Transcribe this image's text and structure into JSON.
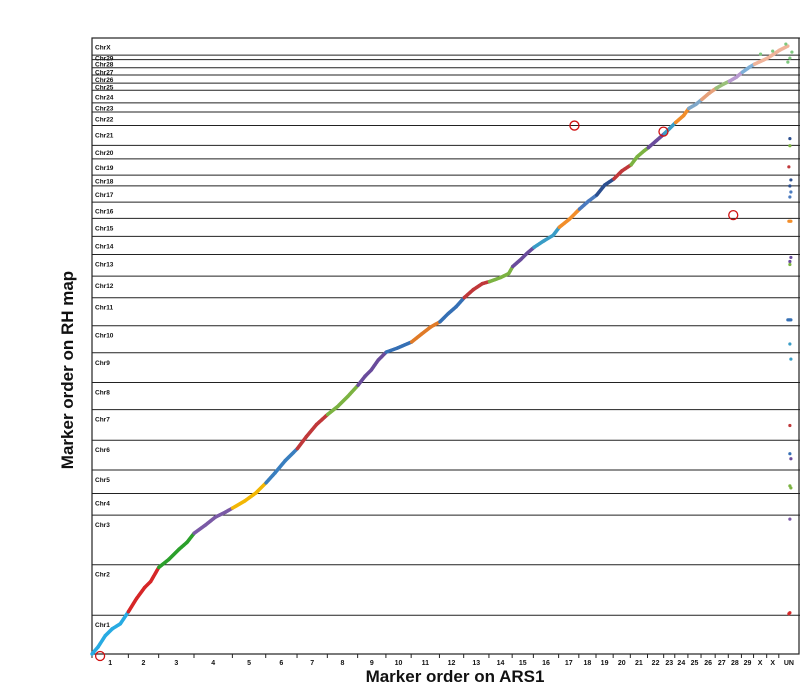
{
  "chart_data": {
    "type": "scatter",
    "xlabel": "Marker order on ARS1",
    "ylabel": "Marker order on RH map",
    "x_tick_labels": [
      "1",
      "2",
      "3",
      "4",
      "5",
      "6",
      "7",
      "8",
      "9",
      "10",
      "11",
      "12",
      "13",
      "14",
      "15",
      "16",
      "17",
      "18",
      "19",
      "20",
      "21",
      "22",
      "23",
      "24",
      "25",
      "26",
      "27",
      "28",
      "29",
      "X",
      "X",
      "UN"
    ],
    "y_bands": [
      "Chr1",
      "Chr2",
      "Chr3",
      "Chr4",
      "Chr5",
      "Chr6",
      "Chr7",
      "Chr8",
      "Chr9",
      "Chr10",
      "Chr11",
      "Chr12",
      "Chr13",
      "Chr14",
      "Chr15",
      "Chr16",
      "Chr17",
      "Chr18",
      "Chr19",
      "Chr20",
      "Chr21",
      "Chr22",
      "Chr23",
      "Chr24",
      "Chr25",
      "Chr26",
      "Chr27",
      "Chr28",
      "Chr29",
      "ChrX"
    ],
    "x_band_widths": [
      36,
      30,
      35,
      38,
      33,
      31,
      30,
      30,
      28,
      25,
      28,
      24,
      25,
      23,
      21,
      25,
      20,
      17,
      17,
      17,
      17,
      16,
      11,
      13,
      13,
      14,
      13,
      13,
      12,
      13,
      12,
      20
    ],
    "y_band_heights": [
      43,
      56,
      55,
      24,
      26,
      33,
      34,
      30,
      33,
      30,
      31,
      24,
      24,
      20,
      20,
      18,
      18,
      12,
      18,
      15,
      22,
      15,
      10,
      14,
      8,
      9,
      8,
      9,
      5,
      19
    ],
    "series_colors": [
      "#29abe2",
      "#d62728",
      "#2ca02c",
      "#7b5aa6",
      "#f2b705",
      "#3a7fbf",
      "#c0393b",
      "#7cb342",
      "#6a4c9c",
      "#3670b5",
      "#e07b28",
      "#3670b5",
      "#c0393b",
      "#7cb342",
      "#6a4c9c",
      "#3a9dc6",
      "#f28e2b",
      "#4b7bbf",
      "#2c4f8f",
      "#c0393b",
      "#7cb342",
      "#6a4c9c",
      "#3a9dc6",
      "#f28e2b",
      "#7fa7c9",
      "#e6a07a",
      "#9ac07a",
      "#b89ad0",
      "#7fb0d8",
      "#f0b49a"
    ],
    "series": [
      {
        "chr": "Chr1",
        "x": [
          0,
          6,
          13,
          20,
          28,
          36
        ],
        "y": [
          0,
          7,
          18,
          25,
          30,
          42
        ]
      },
      {
        "chr": "Chr2",
        "x": [
          36,
          44,
          52,
          58,
          66
        ],
        "y": [
          42,
          55,
          66,
          72,
          86
        ]
      },
      {
        "chr": "Chr3",
        "x": [
          66,
          76,
          86,
          94,
          101
        ],
        "y": [
          86,
          94,
          104,
          111,
          120
        ]
      },
      {
        "chr": "Chr4",
        "x": [
          101,
          112,
          122,
          132,
          139
        ],
        "y": [
          120,
          128,
          136,
          141,
          145
        ]
      },
      {
        "chr": "Chr5",
        "x": [
          139,
          151,
          162,
          172
        ],
        "y": [
          145,
          152,
          160,
          170
        ]
      },
      {
        "chr": "Chr6",
        "x": [
          172,
          181,
          191,
          203
        ],
        "y": [
          170,
          180,
          192,
          204
        ]
      },
      {
        "chr": "Chr7",
        "x": [
          203,
          212,
          222,
          233
        ],
        "y": [
          204,
          216,
          228,
          238
        ]
      },
      {
        "chr": "Chr8",
        "x": [
          233,
          243,
          253,
          263
        ],
        "y": [
          238,
          246,
          256,
          267
        ]
      },
      {
        "chr": "Chr9",
        "x": [
          263,
          270,
          276,
          283,
          291
        ],
        "y": [
          267,
          276,
          282,
          292,
          300
        ]
      },
      {
        "chr": "Chr10",
        "x": [
          291,
          302,
          316
        ],
        "y": [
          300,
          304,
          310
        ]
      },
      {
        "chr": "Chr11",
        "x": [
          316,
          326,
          335,
          344
        ],
        "y": [
          310,
          318,
          325,
          330
        ]
      },
      {
        "chr": "Chr12",
        "x": [
          344,
          352,
          360,
          368
        ],
        "y": [
          330,
          338,
          345,
          354
        ]
      },
      {
        "chr": "Chr13",
        "x": [
          368,
          377,
          386,
          393
        ],
        "y": [
          354,
          362,
          368,
          370
        ]
      },
      {
        "chr": "Chr14",
        "x": [
          393,
          404,
          412,
          416
        ],
        "y": [
          370,
          374,
          378,
          385
        ]
      },
      {
        "chr": "Chr15",
        "x": [
          416,
          424,
          430,
          437
        ],
        "y": [
          385,
          392,
          398,
          404
        ]
      },
      {
        "chr": "Chr16",
        "x": [
          437,
          446,
          456,
          462
        ],
        "y": [
          404,
          410,
          416,
          424
        ]
      },
      {
        "chr": "Chr17",
        "x": [
          462,
          472,
          480,
          482
        ],
        "y": [
          424,
          432,
          440,
          442
        ]
      },
      {
        "chr": "Chr18",
        "x": [
          482,
          491,
          499
        ],
        "y": [
          442,
          450,
          456
        ]
      },
      {
        "chr": "Chr19",
        "x": [
          499,
          507,
          516
        ],
        "y": [
          456,
          466,
          472
        ]
      },
      {
        "chr": "Chr20",
        "x": [
          516,
          524,
          533
        ],
        "y": [
          472,
          480,
          486
        ]
      },
      {
        "chr": "Chr21",
        "x": [
          533,
          539,
          546,
          550
        ],
        "y": [
          486,
          494,
          500,
          503
        ]
      },
      {
        "chr": "Chr22",
        "x": [
          550,
          558,
          566
        ],
        "y": [
          503,
          510,
          517
        ]
      },
      {
        "chr": "Chr23",
        "x": [
          566,
          571,
          577
        ],
        "y": [
          517,
          522,
          528
        ]
      },
      {
        "chr": "Chr24",
        "x": [
          577,
          585,
          590
        ],
        "y": [
          528,
          535,
          542
        ]
      },
      {
        "chr": "Chr25",
        "x": [
          590,
          597,
          603
        ],
        "y": [
          542,
          546,
          551
        ]
      },
      {
        "chr": "Chr26",
        "x": [
          603,
          610,
          617
        ],
        "y": [
          551,
          557,
          562
        ]
      },
      {
        "chr": "Chr27",
        "x": [
          617,
          624,
          630
        ],
        "y": [
          562,
          566,
          569
        ]
      },
      {
        "chr": "Chr28",
        "x": [
          630,
          637,
          643
        ],
        "y": [
          569,
          573,
          578
        ]
      },
      {
        "chr": "Chr29",
        "x": [
          643,
          650,
          655
        ],
        "y": [
          578,
          583,
          586
        ]
      },
      {
        "chr": "ChrX",
        "x": [
          655,
          668,
          680,
          688
        ],
        "y": [
          586,
          592,
          600,
          604
        ]
      }
    ],
    "outliers": [
      {
        "chr": "ChrX",
        "x": [
          661,
          673,
          686,
          692,
          690,
          688
        ],
        "y": [
          596,
          599,
          606,
          598,
          592,
          588
        ]
      },
      {
        "chr": "Chr22",
        "x": [
          690
        ],
        "y": [
          512
        ]
      },
      {
        "chr": "Chr21",
        "x": [
          690
        ],
        "y": [
          505
        ]
      },
      {
        "chr": "Chr20",
        "x": [
          689
        ],
        "y": [
          484
        ]
      },
      {
        "chr": "Chr19",
        "x": [
          691,
          690
        ],
        "y": [
          471,
          465
        ]
      },
      {
        "chr": "Chr18",
        "x": [
          691,
          690
        ],
        "y": [
          459,
          454
        ]
      },
      {
        "chr": "Chr17",
        "x": [
          689,
          690,
          691
        ],
        "y": [
          430,
          430,
          430
        ]
      },
      {
        "chr": "Chr15",
        "x": [
          691,
          690
        ],
        "y": [
          394,
          390
        ]
      },
      {
        "chr": "Chr14",
        "x": [
          690
        ],
        "y": [
          387
        ]
      },
      {
        "chr": "Chr11",
        "x": [
          688,
          689,
          690,
          691
        ],
        "y": [
          332,
          332,
          332,
          332
        ]
      },
      {
        "chr": "Chr10",
        "x": [
          690,
          691
        ],
        "y": [
          308,
          293
        ]
      },
      {
        "chr": "Chr7",
        "x": [
          690
        ],
        "y": [
          227
        ]
      },
      {
        "chr": "Chr6",
        "x": [
          690
        ],
        "y": [
          199
        ]
      },
      {
        "chr": "Chr6b",
        "x": [
          691
        ],
        "y": [
          194
        ]
      },
      {
        "chr": "Chr5",
        "x": [
          690,
          691
        ],
        "y": [
          167,
          165
        ]
      },
      {
        "chr": "Chr4",
        "x": [
          690
        ],
        "y": [
          134
        ]
      },
      {
        "chr": "Chr2",
        "x": [
          689,
          690
        ],
        "y": [
          40,
          41
        ]
      }
    ],
    "highlighted_markers": [
      {
        "x": 8,
        "y": -2
      },
      {
        "x": 477,
        "y": 525
      },
      {
        "x": 565,
        "y": 519
      },
      {
        "x": 634,
        "y": 436
      }
    ],
    "xlim": [
      0,
      700
    ],
    "ylim": [
      0,
      612
    ]
  }
}
